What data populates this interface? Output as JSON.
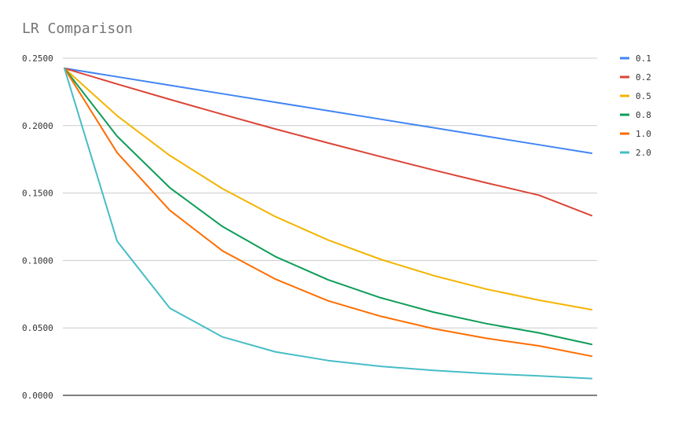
{
  "chart_data": {
    "type": "line",
    "title": "LR Comparison",
    "xlabel": "",
    "ylabel": "",
    "ylim": [
      0,
      0.25
    ],
    "yticks": [
      "0.0000",
      "0.0500",
      "0.1000",
      "0.1500",
      "0.2000",
      "0.2500"
    ],
    "grid": true,
    "legend_position": "right",
    "x": [
      0,
      0.1,
      0.2,
      0.3,
      0.4,
      0.5,
      0.6,
      0.7,
      0.8,
      0.9,
      1.0
    ],
    "series": [
      {
        "name": "0.1",
        "color": "#4285f4",
        "values": [
          0.2425,
          0.2362,
          0.2299,
          0.2236,
          0.2173,
          0.211,
          0.2047,
          0.1984,
          0.1921,
          0.1858,
          0.1795
        ]
      },
      {
        "name": "0.2",
        "color": "#db4437",
        "values": [
          0.2425,
          0.2308,
          0.2194,
          0.2083,
          0.1975,
          0.1871,
          0.177,
          0.1671,
          0.1576,
          0.1484,
          0.1333
        ]
      },
      {
        "name": "0.5",
        "color": "#f4b400",
        "values": [
          0.2425,
          0.2073,
          0.1778,
          0.1532,
          0.1325,
          0.1152,
          0.1008,
          0.0888,
          0.0788,
          0.0706,
          0.0635
        ]
      },
      {
        "name": "0.8",
        "color": "#0f9d58",
        "values": [
          0.2425,
          0.1921,
          0.1539,
          0.1251,
          0.1029,
          0.0857,
          0.0723,
          0.0617,
          0.0532,
          0.0463,
          0.0378
        ]
      },
      {
        "name": "1.0",
        "color": "#ff6d01",
        "values": [
          0.2425,
          0.1799,
          0.1371,
          0.1071,
          0.0862,
          0.0701,
          0.0586,
          0.0495,
          0.0423,
          0.0367,
          0.029
        ]
      },
      {
        "name": "2.0",
        "color": "#46bdc6",
        "values": [
          0.2425,
          0.1143,
          0.0646,
          0.0433,
          0.0323,
          0.0258,
          0.0215,
          0.0185,
          0.0162,
          0.0144,
          0.0125
        ]
      }
    ]
  }
}
